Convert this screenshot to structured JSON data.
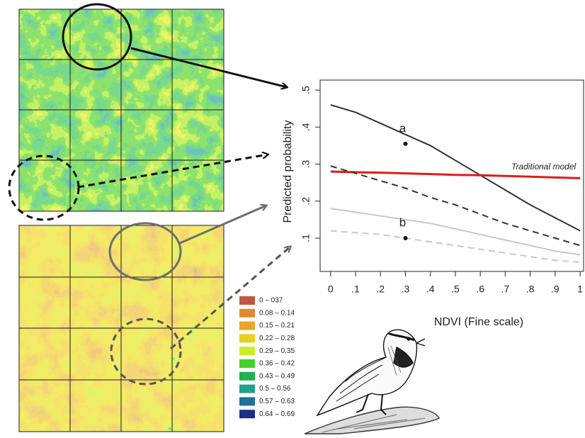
{
  "chart_data": {
    "type": "line",
    "xlabel": "NDVI (Fine scale)",
    "ylabel": "Predicted probability",
    "x": [
      0,
      0.1,
      0.2,
      0.3,
      0.4,
      0.5,
      0.6,
      0.7,
      0.8,
      0.9,
      1
    ],
    "xlim": [
      -0.042,
      1.014
    ],
    "ylim": [
      0.01,
      0.527
    ],
    "xticks": [
      0,
      {
        "value": 0.1,
        "label": ".1"
      },
      {
        "value": 0.2,
        "label": ".2"
      },
      {
        "value": 0.3,
        "label": ".3"
      },
      {
        "value": 0.4,
        "label": ".4"
      },
      {
        "value": 0.5,
        "label": ".5"
      },
      {
        "value": 0.6,
        "label": ".6"
      },
      {
        "value": 0.7,
        "label": ".7"
      },
      {
        "value": 0.8,
        "label": ".8"
      },
      {
        "value": 0.9,
        "label": ".9"
      },
      1
    ],
    "yticks": [
      {
        "value": 0.1,
        "label": ".1"
      },
      {
        "value": 0.2,
        "label": ".2"
      },
      {
        "value": 0.3,
        "label": ".3"
      },
      {
        "value": 0.4,
        "label": ".4"
      },
      {
        "value": 0.5,
        "label": ".5"
      }
    ],
    "series": [
      {
        "color": "#333333",
        "dash": "solid",
        "values": [
          0.46,
          0.44,
          0.41,
          0.38,
          0.35,
          0.31,
          0.27,
          0.23,
          0.19,
          0.155,
          0.12
        ]
      },
      {
        "color": "#dd1c1c",
        "dash": "solid",
        "values": [
          0.28,
          0.278,
          0.277,
          0.275,
          0.273,
          0.271,
          0.27,
          0.268,
          0.266,
          0.264,
          0.262
        ]
      },
      {
        "color": "#333333",
        "dash": "dashed",
        "values": [
          0.295,
          0.275,
          0.255,
          0.235,
          0.21,
          0.19,
          0.165,
          0.14,
          0.12,
          0.1,
          0.08
        ]
      },
      {
        "color": "#c8c8c8",
        "dash": "solid",
        "values": [
          0.18,
          0.17,
          0.16,
          0.15,
          0.14,
          0.125,
          0.11,
          0.095,
          0.08,
          0.065,
          0.055
        ]
      },
      {
        "color": "#c8c8c8",
        "dash": "dashed",
        "values": [
          0.12,
          0.115,
          0.11,
          0.1,
          0.09,
          0.08,
          0.07,
          0.06,
          0.05,
          0.04,
          0.035
        ]
      }
    ],
    "annotations": [
      {
        "text": "a",
        "x": 0.3,
        "y": 0.355
      },
      {
        "text": "b",
        "x": 0.3,
        "y": 0.1
      }
    ],
    "line_label": "Traditional model"
  },
  "map_legend": {
    "items": [
      {
        "label": "0 – 037",
        "color": "#c0563f"
      },
      {
        "label": "0.08 – 0.14",
        "color": "#df8a2c"
      },
      {
        "label": "0.15 – 0.21",
        "color": "#e7a623"
      },
      {
        "label": "0.22 – 0.28",
        "color": "#e9cf1e"
      },
      {
        "label": "0.29 – 0.35",
        "color": "#c9ef22"
      },
      {
        "label": "0.36 – 0.42",
        "color": "#45d126"
      },
      {
        "label": "0.43 – 0.49",
        "color": "#22b04a"
      },
      {
        "label": "0.5 – 0.56",
        "color": "#22a08e"
      },
      {
        "label": "0.57 – 0.63",
        "color": "#1f6f9f"
      },
      {
        "label": "0.64 – 0.69",
        "color": "#1b2e8e"
      }
    ]
  }
}
